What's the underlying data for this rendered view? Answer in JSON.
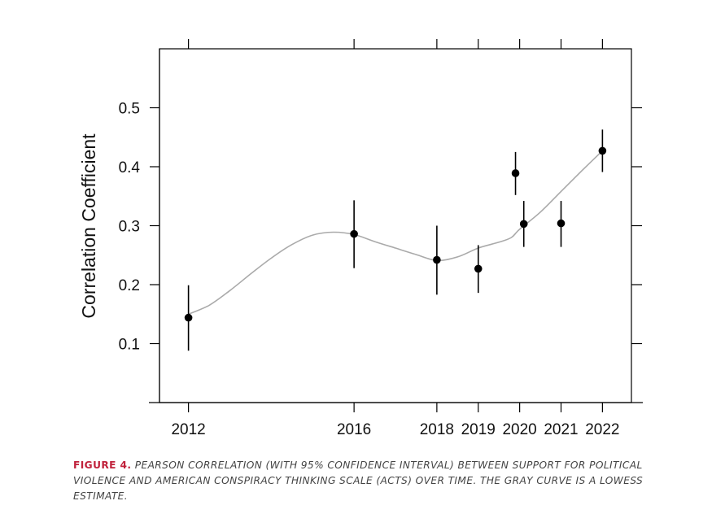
{
  "chart_data": {
    "type": "scatter",
    "title": "",
    "xlabel": "",
    "ylabel": "Correlation Coefficient",
    "x_tick_labels": [
      "2012",
      "2016",
      "2018",
      "2019",
      "2020",
      "2021",
      "2022"
    ],
    "x_ticks": [
      2012,
      2016,
      2018,
      2019,
      2020,
      2021,
      2022
    ],
    "y_tick_labels": [
      "0.1",
      "0.2",
      "0.3",
      "0.4",
      "0.5"
    ],
    "y_ticks": [
      0.1,
      0.2,
      0.3,
      0.4,
      0.5
    ],
    "xlim": [
      2011.3,
      2022.7
    ],
    "ylim": [
      0.0,
      0.6
    ],
    "grid": false,
    "points": [
      {
        "x": 2012.0,
        "y": 0.144,
        "lower": 0.088,
        "upper": 0.199
      },
      {
        "x": 2016.0,
        "y": 0.286,
        "lower": 0.228,
        "upper": 0.343
      },
      {
        "x": 2018.0,
        "y": 0.242,
        "lower": 0.183,
        "upper": 0.3
      },
      {
        "x": 2019.0,
        "y": 0.227,
        "lower": 0.186,
        "upper": 0.267
      },
      {
        "x": 2019.9,
        "y": 0.389,
        "lower": 0.352,
        "upper": 0.425
      },
      {
        "x": 2020.1,
        "y": 0.303,
        "lower": 0.264,
        "upper": 0.342
      },
      {
        "x": 2021.0,
        "y": 0.304,
        "lower": 0.264,
        "upper": 0.342
      },
      {
        "x": 2022.0,
        "y": 0.427,
        "lower": 0.391,
        "upper": 0.463
      }
    ],
    "lowess_curve": {
      "color": "#aaaaaa",
      "points": [
        [
          2012.0,
          0.15
        ],
        [
          2012.5,
          0.165
        ],
        [
          2013.0,
          0.19
        ],
        [
          2013.5,
          0.218
        ],
        [
          2014.0,
          0.245
        ],
        [
          2014.5,
          0.268
        ],
        [
          2015.0,
          0.284
        ],
        [
          2015.5,
          0.289
        ],
        [
          2016.0,
          0.285
        ],
        [
          2016.5,
          0.273
        ],
        [
          2017.0,
          0.262
        ],
        [
          2017.5,
          0.251
        ],
        [
          2018.0,
          0.241
        ],
        [
          2018.5,
          0.247
        ],
        [
          2019.0,
          0.262
        ],
        [
          2019.5,
          0.272
        ],
        [
          2019.8,
          0.28
        ],
        [
          2020.0,
          0.294
        ],
        [
          2020.5,
          0.323
        ],
        [
          2021.0,
          0.358
        ],
        [
          2021.5,
          0.393
        ],
        [
          2022.0,
          0.427
        ]
      ]
    },
    "point_color": "#000000"
  },
  "caption": {
    "label": "FIGURE 4.",
    "text": "PEARSON CORRELATION (WITH 95% CONFIDENCE INTERVAL) BETWEEN SUPPORT FOR POLITICAL VIOLENCE AND AMERICAN CONSPIRACY THINKING SCALE (ACTS) OVER TIME. THE GRAY CURVE IS A LOWESS ESTIMATE.",
    "label_color": "#c0213b"
  }
}
